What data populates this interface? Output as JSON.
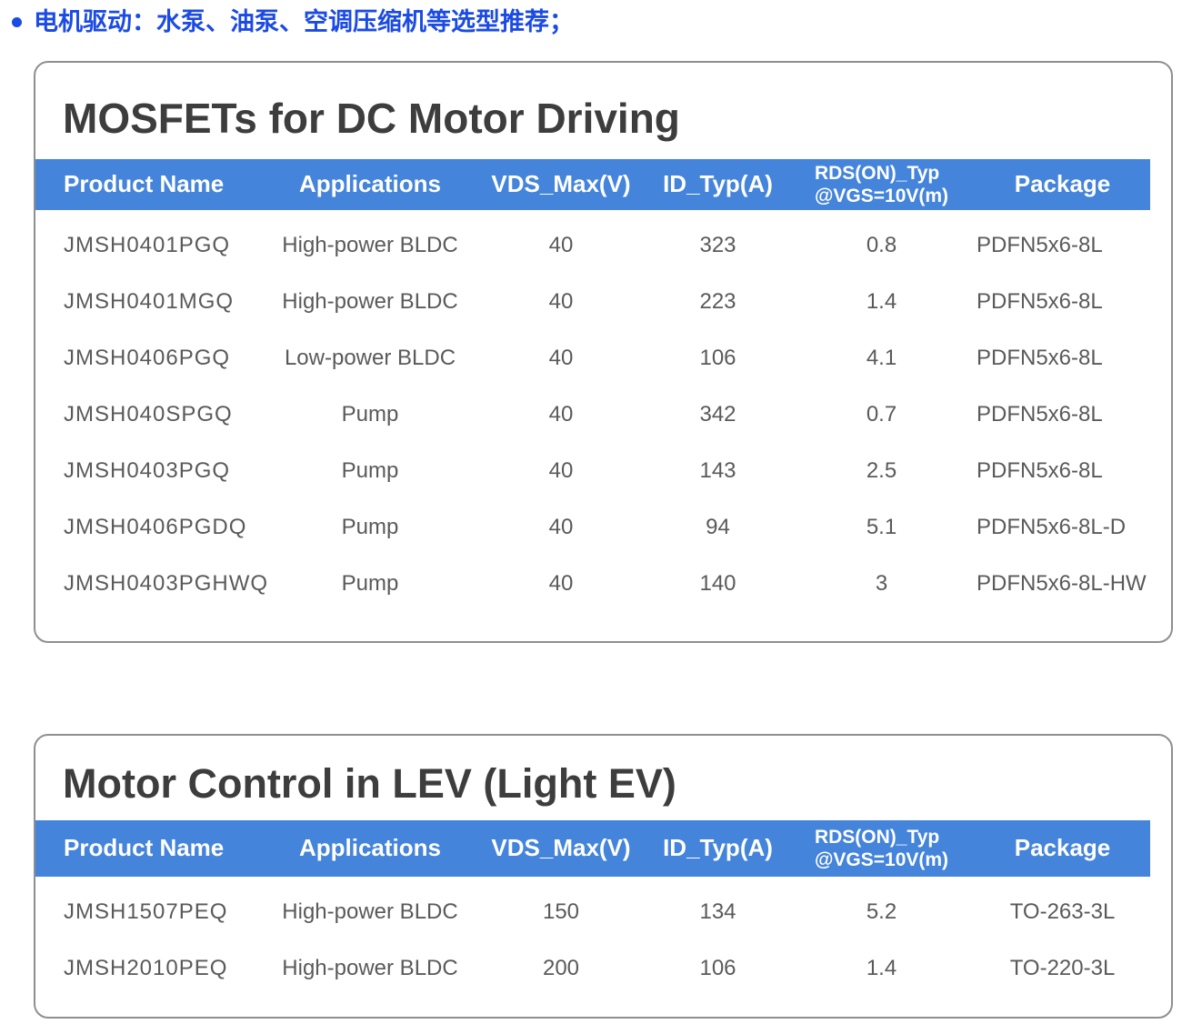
{
  "colors": {
    "accent_blue": "#1B4BE4",
    "header_band_blue": "#4484DA",
    "title_gray": "#3D3D3D",
    "cell_gray": "#5A5A5A",
    "card_border_gray": "#8F8F8F"
  },
  "bullet": {
    "text": "电机驱动：水泵、油泵、空调压缩机等选型推荐；"
  },
  "tables": [
    {
      "title": "MOSFETs for DC Motor Driving",
      "columns": [
        {
          "label": "Product Name"
        },
        {
          "label": "Applications"
        },
        {
          "label": "VDS_Max(V)"
        },
        {
          "label": "ID_Typ(A)"
        },
        {
          "label": "RDS(ON)_Typ",
          "label2": "@VGS=10V(m)"
        },
        {
          "label": "Package"
        }
      ],
      "rows": [
        [
          "JMSH0401PGQ",
          "High-power BLDC",
          "40",
          "323",
          "0.8",
          "PDFN5x6-8L"
        ],
        [
          "JMSH0401MGQ",
          "High-power BLDC",
          "40",
          "223",
          "1.4",
          "PDFN5x6-8L"
        ],
        [
          "JMSH0406PGQ",
          "Low-power BLDC",
          "40",
          "106",
          "4.1",
          "PDFN5x6-8L"
        ],
        [
          "JMSH040SPGQ",
          "Pump",
          "40",
          "342",
          "0.7",
          "PDFN5x6-8L"
        ],
        [
          "JMSH0403PGQ",
          "Pump",
          "40",
          "143",
          "2.5",
          "PDFN5x6-8L"
        ],
        [
          "JMSH0406PGDQ",
          "Pump",
          "40",
          "94",
          "5.1",
          "PDFN5x6-8L-D"
        ],
        [
          "JMSH0403PGHWQ",
          "Pump",
          "40",
          "140",
          "3",
          "PDFN5x6-8L-HW"
        ]
      ]
    },
    {
      "title": "Motor Control in LEV (Light EV)",
      "columns": [
        {
          "label": "Product Name"
        },
        {
          "label": "Applications"
        },
        {
          "label": "VDS_Max(V)"
        },
        {
          "label": "ID_Typ(A)"
        },
        {
          "label": "RDS(ON)_Typ",
          "label2": "@VGS=10V(m)"
        },
        {
          "label": "Package"
        }
      ],
      "rows": [
        [
          "JMSH1507PEQ",
          "High-power BLDC",
          "150",
          "134",
          "5.2",
          "TO-263-3L"
        ],
        [
          "JMSH2010PEQ",
          "High-power BLDC",
          "200",
          "106",
          "1.4",
          "TO-220-3L"
        ]
      ]
    }
  ]
}
